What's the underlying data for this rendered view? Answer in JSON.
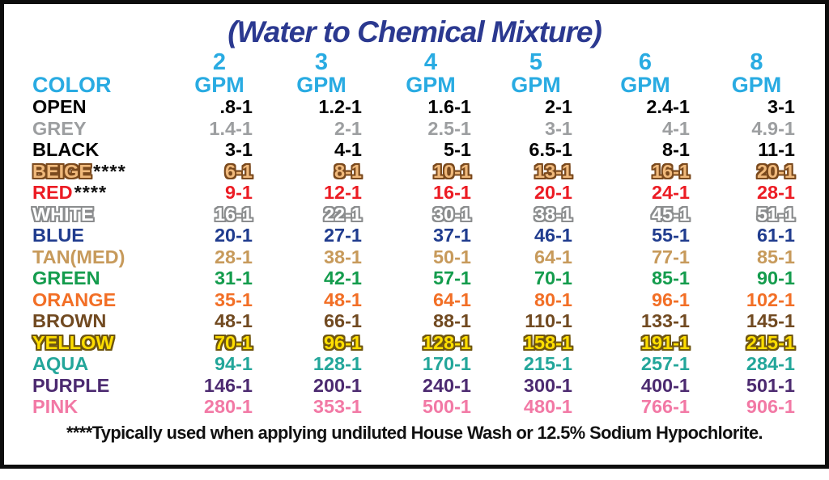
{
  "title": "(Water to Chemical Mixture)",
  "header": {
    "color_label": "COLOR",
    "gpm_label": "GPM",
    "gpm_values": [
      "2",
      "3",
      "4",
      "5",
      "6",
      "8"
    ]
  },
  "chart_data": {
    "type": "table",
    "title": "(Water to Chemical Mixture)",
    "columns": [
      "COLOR",
      "2 GPM",
      "3 GPM",
      "4 GPM",
      "5 GPM",
      "6 GPM",
      "8 GPM"
    ],
    "rows": [
      {
        "color": "OPEN",
        "suffix": "",
        "fill": "#000000",
        "outline": null,
        "values": [
          ".8-1",
          "1.2-1",
          "1.6-1",
          "2-1",
          "2.4-1",
          "3-1"
        ]
      },
      {
        "color": "GREY",
        "suffix": "",
        "fill": "#9c9ea0",
        "outline": null,
        "values": [
          "1.4-1",
          "2-1",
          "2.5-1",
          "3-1",
          "4-1",
          "4.9-1"
        ]
      },
      {
        "color": "BLACK",
        "suffix": "",
        "fill": "#000000",
        "outline": null,
        "values": [
          "3-1",
          "4-1",
          "5-1",
          "6.5-1",
          "8-1",
          "11-1"
        ]
      },
      {
        "color": "BEIGE",
        "suffix": "****",
        "fill": "#f0b97b",
        "outline": "#7b4a1e",
        "values": [
          "6-1",
          "8-1",
          "10-1",
          "13-1",
          "16-1",
          "20-1"
        ]
      },
      {
        "color": "RED",
        "suffix": "****",
        "fill": "#ec1c24",
        "outline": null,
        "values": [
          "9-1",
          "12-1",
          "16-1",
          "20-1",
          "24-1",
          "28-1"
        ]
      },
      {
        "color": "WHITE",
        "suffix": "",
        "fill": "#ffffff",
        "outline": "#8b8d8e",
        "values": [
          "16-1",
          "22-1",
          "30-1",
          "38-1",
          "45-1",
          "51-1"
        ]
      },
      {
        "color": "BLUE",
        "suffix": "",
        "fill": "#203c8e",
        "outline": null,
        "values": [
          "20-1",
          "27-1",
          "37-1",
          "46-1",
          "55-1",
          "61-1"
        ]
      },
      {
        "color": "TAN(MED)",
        "suffix": "",
        "fill": "#c79a5b",
        "outline": null,
        "values": [
          "28-1",
          "38-1",
          "50-1",
          "64-1",
          "77-1",
          "85-1"
        ]
      },
      {
        "color": "GREEN",
        "suffix": "",
        "fill": "#149c4d",
        "outline": null,
        "values": [
          "31-1",
          "42-1",
          "57-1",
          "70-1",
          "85-1",
          "90-1"
        ]
      },
      {
        "color": "ORANGE",
        "suffix": "",
        "fill": "#f26f26",
        "outline": null,
        "values": [
          "35-1",
          "48-1",
          "64-1",
          "80-1",
          "96-1",
          "102-1"
        ]
      },
      {
        "color": "BROWN",
        "suffix": "",
        "fill": "#714a21",
        "outline": null,
        "values": [
          "48-1",
          "66-1",
          "88-1",
          "110-1",
          "133-1",
          "145-1"
        ]
      },
      {
        "color": "YELLOW",
        "suffix": "",
        "fill": "#ffde00",
        "outline": "#6f5611",
        "values": [
          "70-1",
          "96-1",
          "128-1",
          "158-1",
          "191-1",
          "215-1"
        ]
      },
      {
        "color": "AQUA",
        "suffix": "",
        "fill": "#23a69a",
        "outline": null,
        "values": [
          "94-1",
          "128-1",
          "170-1",
          "215-1",
          "257-1",
          "284-1"
        ]
      },
      {
        "color": "PURPLE",
        "suffix": "",
        "fill": "#4c2a70",
        "outline": null,
        "values": [
          "146-1",
          "200-1",
          "240-1",
          "300-1",
          "400-1",
          "501-1"
        ]
      },
      {
        "color": "PINK",
        "suffix": "",
        "fill": "#f279a5",
        "outline": null,
        "values": [
          "280-1",
          "353-1",
          "500-1",
          "480-1",
          "766-1",
          "906-1"
        ]
      }
    ]
  },
  "footnote": "****Typically used when applying undiluted House Wash or 12.5% Sodium Hypochlorite.",
  "colors": {
    "title_blue": "#2b3990",
    "header_cyan": "#29abe2",
    "border_black": "#0d0d0d",
    "footnote_black": "#111111"
  }
}
